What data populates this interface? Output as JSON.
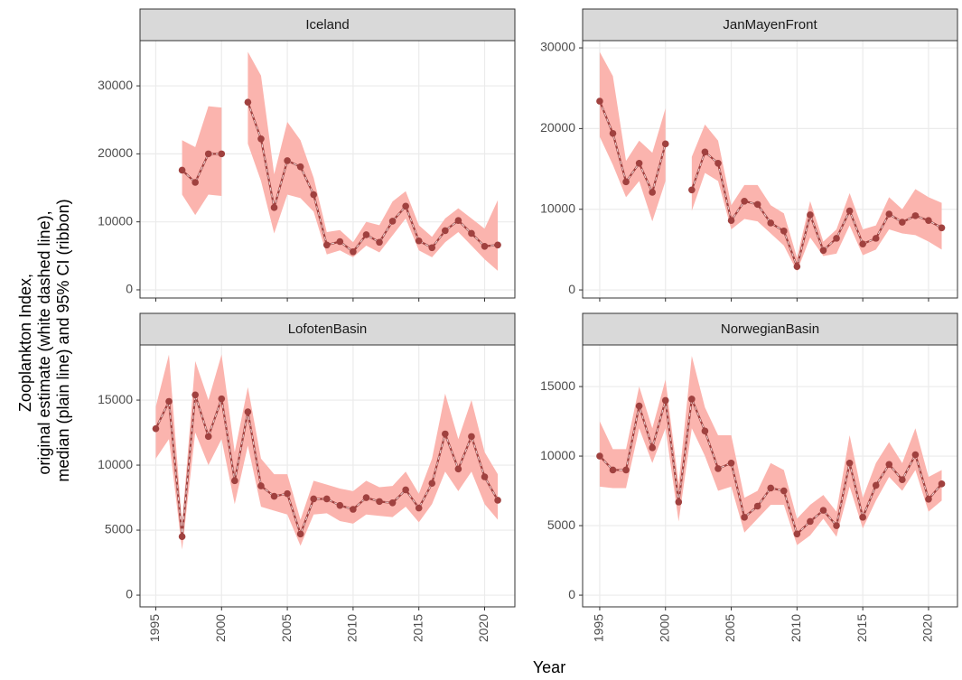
{
  "ylabel": [
    "Zooplankton Index,",
    "original estimate (white dashed line),",
    "median (plain line) and 95% CI (ribbon)"
  ],
  "xlabel": "Year",
  "chart_data": [
    {
      "type": "line",
      "title": "Iceland",
      "color": "#a0413f",
      "ribbon_color": "#fbb4ae",
      "grid": true,
      "x": [
        1995,
        1996,
        1997,
        1998,
        1999,
        2000,
        2001,
        2002,
        2003,
        2004,
        2005,
        2006,
        2007,
        2008,
        2009,
        2010,
        2011,
        2012,
        2013,
        2014,
        2015,
        2016,
        2017,
        2018,
        2019,
        2020,
        2021
      ],
      "values": [
        null,
        null,
        17600,
        15800,
        20000,
        20000,
        null,
        27600,
        22200,
        12100,
        19000,
        18100,
        14000,
        6600,
        7100,
        5600,
        8100,
        7000,
        10100,
        12300,
        7200,
        6200,
        8700,
        10200,
        8300,
        6400,
        6600
      ],
      "lower": [
        null,
        null,
        14000,
        11000,
        14000,
        13800,
        null,
        21500,
        16000,
        8300,
        14000,
        13500,
        11500,
        5200,
        5800,
        4800,
        6500,
        5500,
        8000,
        10500,
        5800,
        4800,
        7000,
        8500,
        6500,
        4500,
        2800
      ],
      "upper": [
        null,
        null,
        22000,
        21000,
        27000,
        26800,
        null,
        35000,
        31500,
        17000,
        24700,
        22000,
        16500,
        8500,
        8800,
        7000,
        10000,
        9500,
        13000,
        14500,
        9500,
        7800,
        10500,
        12000,
        10500,
        9000,
        13200
      ],
      "xlim": [
        1993.8,
        2022.3
      ],
      "xticks": [
        1995,
        2000,
        2005,
        2010,
        2015,
        2020
      ],
      "ylim": [
        -1200,
        36650
      ],
      "yticks": [
        0,
        10000,
        20000,
        30000
      ]
    },
    {
      "type": "line",
      "title": "JanMayenFront",
      "color": "#a0413f",
      "ribbon_color": "#fbb4ae",
      "grid": true,
      "x": [
        1995,
        1996,
        1997,
        1998,
        1999,
        2000,
        2001,
        2002,
        2003,
        2004,
        2005,
        2006,
        2007,
        2008,
        2009,
        2010,
        2011,
        2012,
        2013,
        2014,
        2015,
        2016,
        2017,
        2018,
        2019,
        2020,
        2021
      ],
      "values": [
        23400,
        19400,
        13400,
        15700,
        12100,
        18100,
        null,
        12400,
        17100,
        15700,
        8600,
        11000,
        10600,
        8300,
        7300,
        2900,
        9300,
        4900,
        6400,
        9800,
        5700,
        6400,
        9400,
        8400,
        9200,
        8600,
        7700
      ],
      "lower": [
        19000,
        15500,
        11500,
        13500,
        8500,
        13500,
        null,
        9800,
        14500,
        13500,
        7500,
        8800,
        8500,
        7000,
        5500,
        2300,
        6500,
        4200,
        4500,
        8000,
        4300,
        5000,
        7500,
        7000,
        6800,
        6000,
        5000
      ],
      "upper": [
        29500,
        26500,
        16000,
        18500,
        17000,
        22500,
        null,
        16500,
        20500,
        18500,
        10500,
        13000,
        13000,
        10500,
        9500,
        4000,
        11000,
        6000,
        7500,
        12000,
        7500,
        8000,
        11500,
        10000,
        12500,
        11500,
        10800
      ],
      "xlim": [
        1993.7,
        2022.2
      ],
      "xticks": [
        1995,
        2000,
        2005,
        2010,
        2015,
        2020
      ],
      "ylim": [
        -1000,
        30900
      ],
      "yticks": [
        0,
        10000,
        20000,
        30000
      ]
    },
    {
      "type": "line",
      "title": "LofotenBasin",
      "color": "#a0413f",
      "ribbon_color": "#fbb4ae",
      "grid": true,
      "x": [
        1995,
        1996,
        1997,
        1998,
        1999,
        2000,
        2001,
        2002,
        2003,
        2004,
        2005,
        2006,
        2007,
        2008,
        2009,
        2010,
        2011,
        2012,
        2013,
        2014,
        2015,
        2016,
        2017,
        2018,
        2019,
        2020,
        2021
      ],
      "values": [
        12800,
        14900,
        4500,
        15400,
        12200,
        15100,
        8800,
        14100,
        8400,
        7600,
        7800,
        4700,
        7400,
        7400,
        6900,
        6600,
        7500,
        7200,
        7100,
        8100,
        6700,
        8600,
        12400,
        9700,
        12200,
        9100,
        7300
      ],
      "lower": [
        10500,
        12000,
        3500,
        12500,
        10000,
        12000,
        7000,
        11500,
        6800,
        6500,
        6200,
        3800,
        6200,
        6300,
        5700,
        5500,
        6200,
        6100,
        6000,
        6800,
        5600,
        7000,
        9500,
        8000,
        9500,
        7000,
        5800
      ],
      "upper": [
        14500,
        18500,
        5500,
        18000,
        15000,
        18500,
        11000,
        16000,
        10500,
        9300,
        9300,
        5800,
        8800,
        8500,
        8200,
        8000,
        8800,
        8300,
        8400,
        9500,
        7800,
        10500,
        15500,
        12000,
        15000,
        11000,
        9300
      ],
      "xlim": [
        1993.8,
        2022.3
      ],
      "xticks": [
        1995,
        2000,
        2005,
        2010,
        2015,
        2020
      ],
      "ylim": [
        -900,
        19240
      ],
      "yticks": [
        0,
        5000,
        10000,
        15000
      ]
    },
    {
      "type": "line",
      "title": "NorwegianBasin",
      "color": "#a0413f",
      "ribbon_color": "#fbb4ae",
      "grid": true,
      "x": [
        1995,
        1996,
        1997,
        1998,
        1999,
        2000,
        2001,
        2002,
        2003,
        2004,
        2005,
        2006,
        2007,
        2008,
        2009,
        2010,
        2011,
        2012,
        2013,
        2014,
        2015,
        2016,
        2017,
        2018,
        2019,
        2020,
        2021
      ],
      "values": [
        10000,
        9000,
        9000,
        13600,
        10600,
        14000,
        6700,
        14100,
        11800,
        9100,
        9500,
        5600,
        6400,
        7700,
        7500,
        4400,
        5300,
        6100,
        5000,
        9500,
        5600,
        7900,
        9400,
        8300,
        10100,
        6900,
        8000
      ],
      "lower": [
        7800,
        7700,
        7700,
        12000,
        9500,
        12000,
        5300,
        12000,
        10000,
        7500,
        7800,
        4500,
        5500,
        6500,
        6500,
        3600,
        4300,
        5500,
        4200,
        7800,
        4800,
        6800,
        8500,
        7500,
        9000,
        6000,
        6800
      ],
      "upper": [
        12500,
        10500,
        10500,
        15000,
        12000,
        15500,
        8000,
        17200,
        13500,
        11500,
        11500,
        7000,
        7500,
        9500,
        9000,
        5500,
        6500,
        7200,
        6000,
        11500,
        7000,
        9500,
        11000,
        9500,
        12000,
        8500,
        9000
      ],
      "xlim": [
        1993.7,
        2022.2
      ],
      "xticks": [
        1995,
        2000,
        2005,
        2010,
        2015,
        2020
      ],
      "ylim": [
        -840,
        17990
      ],
      "yticks": [
        0,
        5000,
        10000,
        15000
      ]
    }
  ]
}
